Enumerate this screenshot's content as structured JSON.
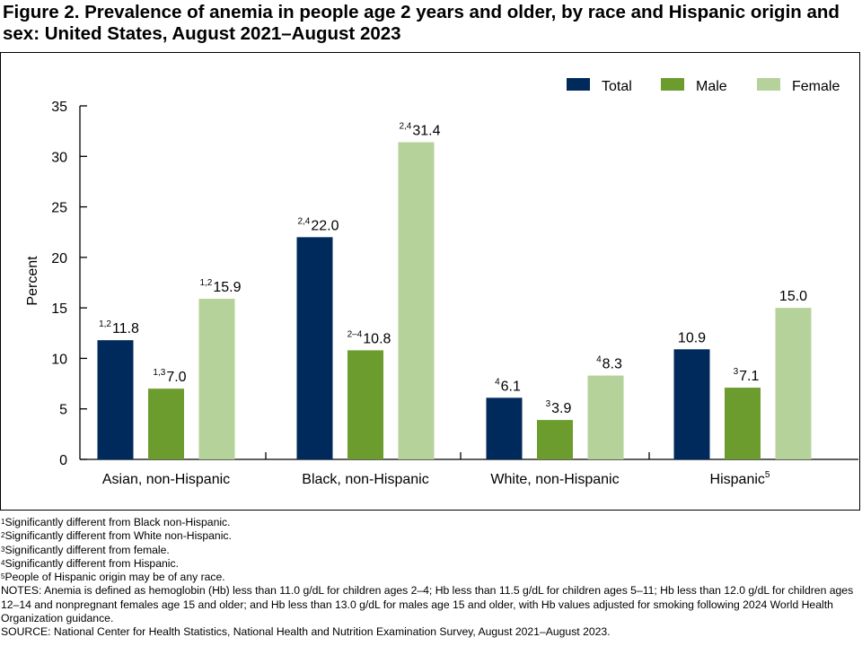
{
  "title": "Figure 2. Prevalence of anemia in people age 2 years and older, by race and Hispanic origin and sex: United States, August 2021–August 2023",
  "colors": {
    "Total": "#012a5c",
    "Male": "#6c9c2e",
    "Female": "#b5d29a"
  },
  "chart_data": {
    "type": "bar",
    "title": "",
    "xlabel": "",
    "ylabel": "Percent",
    "ylim": [
      0,
      35
    ],
    "yticks": [
      0,
      5,
      10,
      15,
      20,
      25,
      30,
      35
    ],
    "grid": false,
    "legend_position": "top-right",
    "categories": [
      {
        "label": "Asian, non-Hispanic",
        "sup": ""
      },
      {
        "label": "Black, non-Hispanic",
        "sup": ""
      },
      {
        "label": "White, non-Hispanic",
        "sup": ""
      },
      {
        "label": "Hispanic",
        "sup": "5"
      }
    ],
    "series": [
      {
        "name": "Total",
        "values": [
          11.8,
          22.0,
          6.1,
          10.9
        ],
        "labels": [
          "11.8",
          "22.0",
          "6.1",
          "10.9"
        ],
        "sup": [
          "1,2",
          "2,4",
          "4",
          ""
        ]
      },
      {
        "name": "Male",
        "values": [
          7.0,
          10.8,
          3.9,
          7.1
        ],
        "labels": [
          "7.0",
          "10.8",
          "3.9",
          "7.1"
        ],
        "sup": [
          "1,3",
          "2–4",
          "3",
          "3"
        ]
      },
      {
        "name": "Female",
        "values": [
          15.9,
          31.4,
          8.3,
          15.0
        ],
        "labels": [
          "15.9",
          "31.4",
          "8.3",
          "15.0"
        ],
        "sup": [
          "1,2",
          "2,4",
          "4",
          ""
        ]
      }
    ]
  },
  "footnotes": [
    {
      "sup": "1",
      "text": "Significantly different from Black non-Hispanic."
    },
    {
      "sup": "2",
      "text": "Significantly different from White non-Hispanic."
    },
    {
      "sup": "3",
      "text": "Significantly different from female."
    },
    {
      "sup": "4",
      "text": "Significantly different from Hispanic."
    },
    {
      "sup": "5",
      "text": "People of Hispanic origin may be of any race."
    }
  ],
  "notes": "NOTES: Anemia is defined as hemoglobin (Hb) less than 11.0 g/dL for children ages 2–4; Hb less than 11.5 g/dL for children ages 5–11; Hb less than 12.0 g/dL for children ages 12–14 and nonpregnant females age 15 and older; and Hb less than 13.0 g/dL for males age 15 and older, with Hb values adjusted for smoking following 2024 World Health Organization guidance.",
  "source": "SOURCE: National Center for Health Statistics, National Health and Nutrition Examination Survey, August 2021–August 2023."
}
